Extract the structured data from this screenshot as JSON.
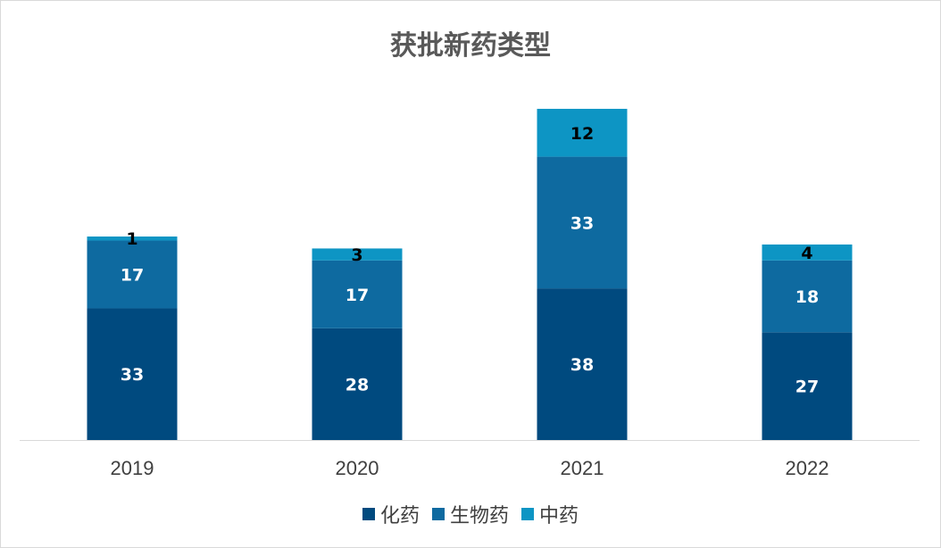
{
  "chart_data": {
    "type": "bar",
    "stacked": true,
    "title": "获批新药类型",
    "categories": [
      "2019",
      "2020",
      "2021",
      "2022"
    ],
    "series": [
      {
        "name": "化药",
        "values": [
          33,
          28,
          38,
          27
        ],
        "color": "#004a7f",
        "label_color": "#ffffff"
      },
      {
        "name": "生物药",
        "values": [
          17,
          17,
          33,
          18
        ],
        "color": "#0e6aa0",
        "label_color": "#ffffff"
      },
      {
        "name": "中药",
        "values": [
          1,
          3,
          12,
          4
        ],
        "color": "#0d95c4",
        "label_color": "#000000"
      }
    ],
    "ylim": [
      0,
      85
    ],
    "grid": false,
    "legend_position": "bottom"
  }
}
